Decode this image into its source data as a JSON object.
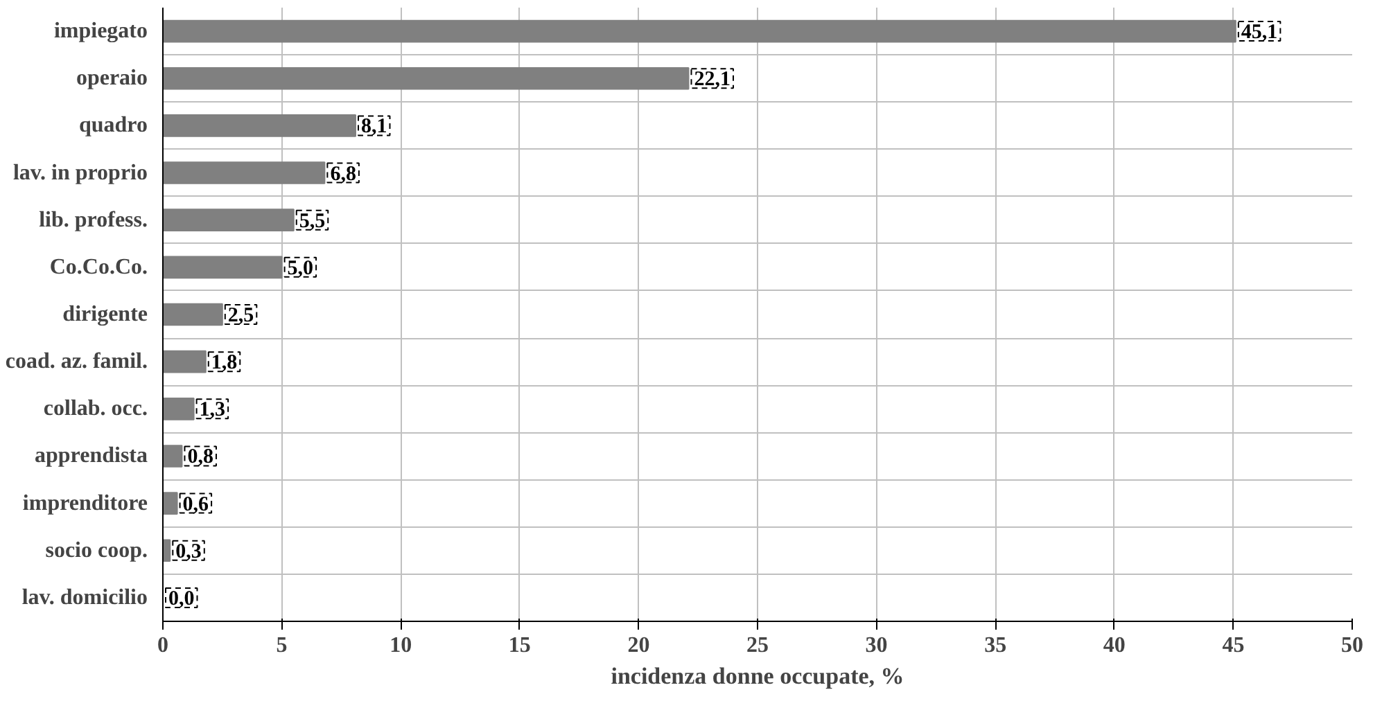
{
  "chart_data": {
    "type": "bar",
    "orientation": "horizontal",
    "xlabel": "incidenza donne occupate, %",
    "categories": [
      "impiegato",
      "operaio",
      "quadro",
      "lav. in proprio",
      "lib. profess.",
      "Co.Co.Co.",
      "dirigente",
      "coad. az. famil.",
      "collab. occ.",
      "apprendista",
      "imprenditore",
      "socio coop.",
      "lav. domicilio"
    ],
    "values": [
      45.1,
      22.1,
      8.1,
      6.8,
      5.5,
      5.0,
      2.5,
      1.8,
      1.3,
      0.8,
      0.6,
      0.3,
      0.0
    ],
    "value_labels": [
      "45,1",
      "22,1",
      "8,1",
      "6,8",
      "5,5",
      "5,0",
      "2,5",
      "1,8",
      "1,3",
      "0,8",
      "0,6",
      "0,3",
      "0,0"
    ],
    "color": "#808080",
    "xlim": [
      0,
      50
    ],
    "xticks": [
      0,
      5,
      10,
      15,
      20,
      25,
      30,
      35,
      40,
      45,
      50
    ],
    "grid": true
  }
}
